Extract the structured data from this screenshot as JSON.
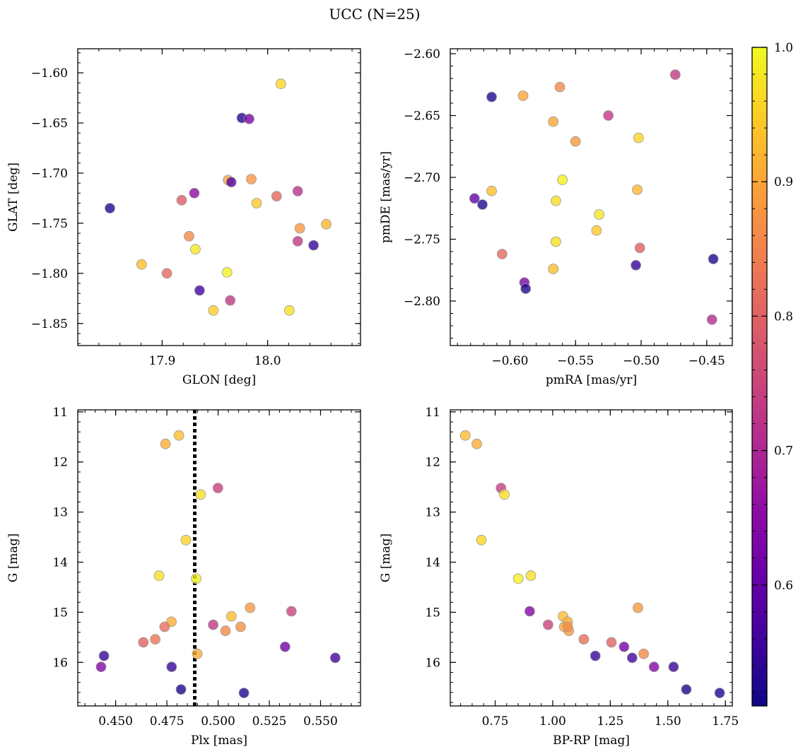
{
  "figure": {
    "title": "UCC (N=25)"
  },
  "chart_data": [
    {
      "type": "scatter",
      "xlabel": "GLON [deg]",
      "ylabel": "GLAT [deg]",
      "xlim": [
        17.82,
        18.088
      ],
      "ylim": [
        -1.872,
        -1.576
      ],
      "y_inverted": false,
      "xticks": [
        17.9,
        18.0
      ],
      "xtick_labels": [
        "17.9",
        "18.0"
      ],
      "yticks": [
        -1.6,
        -1.65,
        -1.7,
        -1.75,
        -1.8,
        -1.85
      ],
      "ytick_labels": [
        "−1.60",
        "−1.65",
        "−1.70",
        "−1.75",
        "−1.80",
        "−1.85"
      ],
      "x_minor_step": 0.02,
      "y_minor_step": 0.01,
      "x": [
        18.0125,
        17.9755,
        17.9825,
        17.9625,
        17.9845,
        17.9655,
        17.9185,
        18.0085,
        17.9305,
        17.9895,
        17.8505,
        18.0285,
        18.0555,
        18.0305,
        17.9255,
        18.0285,
        18.0435,
        17.9315,
        17.8805,
        17.9045,
        17.9615,
        17.9355,
        17.9645,
        17.9485,
        18.0205
      ],
      "y": [
        -1.611,
        -1.645,
        -1.646,
        -1.707,
        -1.706,
        -1.709,
        -1.727,
        -1.723,
        -1.72,
        -1.73,
        -1.735,
        -1.718,
        -1.751,
        -1.755,
        -1.763,
        -1.768,
        -1.772,
        -1.776,
        -1.791,
        -1.8,
        -1.799,
        -1.817,
        -1.827,
        -1.837,
        -1.837
      ],
      "color": [
        0.96,
        0.53,
        0.63,
        0.9,
        0.88,
        0.58,
        0.79,
        0.81,
        0.65,
        0.94,
        0.53,
        0.72,
        0.92,
        0.88,
        0.86,
        0.73,
        0.55,
        0.98,
        0.93,
        0.81,
        0.99,
        0.56,
        0.73,
        0.95,
        0.97
      ]
    },
    {
      "type": "scatter",
      "xlabel": "pmRA [mas/yr]",
      "ylabel": "pmDE [mas/yr]",
      "xlim": [
        -0.6455,
        -0.4305
      ],
      "ylim": [
        -2.836,
        -2.596
      ],
      "y_inverted": false,
      "xticks": [
        -0.6,
        -0.55,
        -0.5,
        -0.45
      ],
      "xtick_labels": [
        "−0.60",
        "−0.55",
        "−0.50",
        "−0.45"
      ],
      "yticks": [
        -2.6,
        -2.65,
        -2.7,
        -2.75,
        -2.8
      ],
      "ytick_labels": [
        "−2.60",
        "−2.65",
        "−2.70",
        "−2.75",
        "−2.80"
      ],
      "x_minor_step": 0.01,
      "y_minor_step": 0.01,
      "x": [
        -0.614,
        -0.59,
        -0.562,
        -0.474,
        -0.525,
        -0.567,
        -0.55,
        -0.502,
        -0.627,
        -0.621,
        -0.614,
        -0.56,
        -0.565,
        -0.503,
        -0.532,
        -0.534,
        -0.606,
        -0.565,
        -0.501,
        -0.567,
        -0.445,
        -0.504,
        -0.589,
        -0.588,
        -0.446
      ],
      "y": [
        -2.635,
        -2.634,
        -2.627,
        -2.617,
        -2.65,
        -2.655,
        -2.671,
        -2.668,
        -2.717,
        -2.722,
        -2.711,
        -2.702,
        -2.719,
        -2.71,
        -2.73,
        -2.743,
        -2.762,
        -2.752,
        -2.757,
        -2.774,
        -2.766,
        -2.771,
        -2.785,
        -2.79,
        -2.815
      ],
      "color": [
        0.53,
        0.9,
        0.86,
        0.73,
        0.73,
        0.9,
        0.88,
        0.96,
        0.6,
        0.53,
        0.93,
        0.99,
        0.97,
        0.92,
        0.98,
        0.94,
        0.81,
        0.97,
        0.8,
        0.93,
        0.53,
        0.55,
        0.63,
        0.53,
        0.71
      ]
    },
    {
      "type": "scatter",
      "xlabel": "Plx [mas]",
      "ylabel": "G [mag]",
      "xlim": [
        0.4315,
        0.5695
      ],
      "ylim": [
        16.87,
        10.96
      ],
      "y_inverted": true,
      "xticks": [
        0.45,
        0.475,
        0.5,
        0.525,
        0.55
      ],
      "xtick_labels": [
        "0.450",
        "0.475",
        "0.500",
        "0.525",
        "0.550"
      ],
      "yticks": [
        11,
        12,
        13,
        14,
        15,
        16
      ],
      "ytick_labels": [
        "11",
        "12",
        "13",
        "14",
        "15",
        "16"
      ],
      "x_minor_step": 0.005,
      "y_minor_step": 0.2,
      "x": [
        0.4809,
        0.4743,
        0.4999,
        0.4915,
        0.4843,
        0.4712,
        0.4893,
        0.5156,
        0.5358,
        0.5065,
        0.4772,
        0.4976,
        0.511,
        0.5036,
        0.4739,
        0.4693,
        0.4635,
        0.4898,
        0.4443,
        0.5327,
        0.5572,
        0.4429,
        0.4773,
        0.4819,
        0.5126
      ],
      "y": [
        11.47,
        11.64,
        12.52,
        12.65,
        13.56,
        14.27,
        14.33,
        14.91,
        14.98,
        15.08,
        15.19,
        15.25,
        15.29,
        15.37,
        15.29,
        15.54,
        15.6,
        15.83,
        15.87,
        15.69,
        15.91,
        16.09,
        16.09,
        16.54,
        16.61
      ],
      "color": [
        0.93,
        0.91,
        0.74,
        0.97,
        0.96,
        0.97,
        0.99,
        0.88,
        0.75,
        0.93,
        0.91,
        0.73,
        0.87,
        0.86,
        0.82,
        0.83,
        0.8,
        0.91,
        0.55,
        0.62,
        0.56,
        0.64,
        0.55,
        0.52,
        0.53
      ],
      "vline": {
        "x": 0.4886,
        "style": "dotted"
      }
    },
    {
      "type": "scatter",
      "xlabel": "BP-RP [mag]",
      "ylabel": "G [mag]",
      "xlim": [
        0.555,
        1.78
      ],
      "ylim": [
        16.87,
        10.96
      ],
      "y_inverted": true,
      "xticks": [
        0.75,
        1.0,
        1.25,
        1.5,
        1.75
      ],
      "xtick_labels": [
        "0.75",
        "1.00",
        "1.25",
        "1.50",
        "1.75"
      ],
      "yticks": [
        11,
        12,
        13,
        14,
        15,
        16
      ],
      "ytick_labels": [
        "11",
        "12",
        "13",
        "14",
        "15",
        "16"
      ],
      "x_minor_step": 0.05,
      "y_minor_step": 0.2,
      "x": [
        0.62,
        0.67,
        0.775,
        0.79,
        0.69,
        0.85,
        0.905,
        0.9,
        0.98,
        1.045,
        1.05,
        1.065,
        1.07,
        1.135,
        1.255,
        1.37,
        1.31,
        1.185,
        1.395,
        1.345,
        1.44,
        1.525,
        1.58,
        1.725,
        1.065
      ],
      "y": [
        11.47,
        11.64,
        12.52,
        12.65,
        13.56,
        14.33,
        14.27,
        14.98,
        15.25,
        15.08,
        15.29,
        15.19,
        15.37,
        15.54,
        15.6,
        14.91,
        15.69,
        15.87,
        15.83,
        15.91,
        16.09,
        16.09,
        16.54,
        16.61,
        15.29
      ],
      "color": [
        0.93,
        0.91,
        0.74,
        0.97,
        0.96,
        0.99,
        0.97,
        0.64,
        0.75,
        0.93,
        0.91,
        0.91,
        0.88,
        0.82,
        0.8,
        0.88,
        0.62,
        0.55,
        0.86,
        0.56,
        0.64,
        0.55,
        0.52,
        0.53,
        0.87
      ]
    }
  ],
  "colorbar": {
    "cmap": "plasma",
    "vmin": 0.51,
    "vmax": 1.0,
    "ticks": [
      0.6,
      0.7,
      0.8,
      0.9,
      1.0
    ],
    "tick_labels": [
      "0.6",
      "0.7",
      "0.8",
      "0.9",
      "1.0"
    ],
    "stops": [
      "#0d0887",
      "#41049d",
      "#6a00a8",
      "#8f0da4",
      "#b12a90",
      "#cc4778",
      "#e16462",
      "#f2844b",
      "#fca636",
      "#fcce25",
      "#f0f921"
    ]
  },
  "marker": {
    "edge_color": "#9a9a9a",
    "opacity": 0.8
  }
}
